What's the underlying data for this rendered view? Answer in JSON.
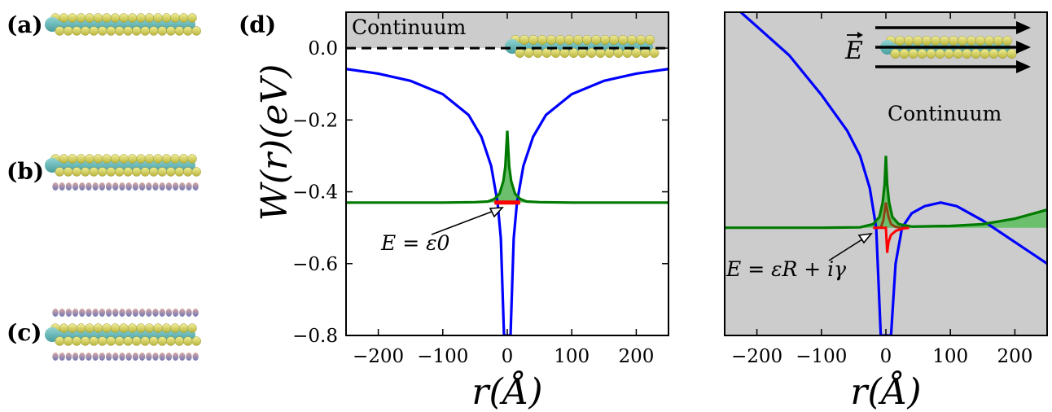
{
  "panel_labels": {
    "a": "(a)",
    "b": "(b)",
    "c": "(c)",
    "d": "(d)"
  },
  "chart_data": [
    {
      "type": "line",
      "panel": "(d)",
      "xlabel": "r(Å)",
      "ylabel": "W(r)(eV)",
      "xlim": [
        -250,
        250
      ],
      "ylim": [
        -0.8,
        0.1
      ],
      "xticks": [
        "−200",
        "−100",
        "0",
        "100",
        "200"
      ],
      "xtick_values": [
        -200,
        -100,
        0,
        100,
        200
      ],
      "yticks": [
        "0.0",
        "−0.2",
        "−0.4",
        "−0.6",
        "−0.8"
      ],
      "ytick_values": [
        0.0,
        -0.2,
        -0.4,
        -0.6,
        -0.8
      ],
      "region_label": "Continuum",
      "continuum_above": 0.0,
      "annotation": "E = ε0",
      "series": [
        {
          "role": "potential W(r)",
          "color": "#0000ff",
          "x": [
            -250,
            -200,
            -150,
            -100,
            -60,
            -40,
            -25,
            -15,
            -10,
            -5,
            5,
            10,
            15,
            25,
            40,
            60,
            100,
            150,
            200,
            250
          ],
          "y": [
            -0.058,
            -0.071,
            -0.091,
            -0.128,
            -0.186,
            -0.247,
            -0.328,
            -0.43,
            -0.53,
            -0.8,
            -0.8,
            -0.53,
            -0.43,
            -0.328,
            -0.247,
            -0.186,
            -0.128,
            -0.091,
            -0.071,
            -0.058
          ]
        },
        {
          "role": "state density (filled)",
          "color": "#007a00",
          "fill": "#6cbf6c",
          "x": [
            -250,
            -100,
            -50,
            -30,
            -20,
            -12,
            -6,
            -3,
            0,
            3,
            6,
            12,
            20,
            30,
            50,
            100,
            250
          ],
          "y": [
            -0.43,
            -0.43,
            -0.429,
            -0.427,
            -0.42,
            -0.405,
            -0.37,
            -0.33,
            -0.23,
            -0.33,
            -0.37,
            -0.405,
            -0.42,
            -0.427,
            -0.429,
            -0.43,
            -0.43
          ]
        },
        {
          "role": "bound level ε0",
          "color": "#ff0000",
          "x": [
            -20,
            20
          ],
          "y": [
            -0.43,
            -0.43
          ]
        }
      ]
    },
    {
      "type": "line",
      "panel": "right",
      "xlabel": "r(Å)",
      "xlim": [
        -250,
        250
      ],
      "ylim": [
        -0.8,
        0.1
      ],
      "xticks": [
        "−200",
        "−100",
        "0",
        "100",
        "200"
      ],
      "xtick_values": [
        -200,
        -100,
        0,
        100,
        200
      ],
      "region_label": "Continuum",
      "field_label": "E",
      "annotation": "E = εR + iγ",
      "series": [
        {
          "role": "tilted potential",
          "color": "#0000ff",
          "x": [
            -225,
            -200,
            -150,
            -100,
            -60,
            -40,
            -25,
            -15,
            -8,
            8,
            15,
            25,
            40,
            60,
            85,
            110,
            150,
            200,
            250
          ],
          "y": [
            0.1,
            0.06,
            -0.02,
            -0.13,
            -0.23,
            -0.3,
            -0.39,
            -0.5,
            -0.8,
            -0.8,
            -0.6,
            -0.5,
            -0.46,
            -0.44,
            -0.43,
            -0.44,
            -0.48,
            -0.54,
            -0.6
          ]
        },
        {
          "role": "resonance density (filled)",
          "color": "#007a00",
          "fill": "#6cbf6c",
          "x": [
            -250,
            -100,
            -40,
            -20,
            -10,
            -5,
            -2,
            0,
            2,
            5,
            10,
            20,
            40,
            100,
            150,
            200,
            250
          ],
          "y": [
            -0.5,
            -0.5,
            -0.499,
            -0.49,
            -0.47,
            -0.43,
            -0.38,
            -0.3,
            -0.38,
            -0.43,
            -0.47,
            -0.49,
            -0.497,
            -0.495,
            -0.49,
            -0.475,
            -0.45
          ]
        },
        {
          "role": "real part",
          "color": "#8b4513",
          "x": [
            -8,
            -4,
            0,
            2,
            4,
            8,
            14,
            22,
            32
          ],
          "y": [
            -0.5,
            -0.48,
            -0.43,
            -0.45,
            -0.47,
            -0.49,
            -0.497,
            -0.5,
            -0.5
          ]
        },
        {
          "role": "imaginary part",
          "color": "#ff0000",
          "x": [
            -20,
            -10,
            0,
            2,
            4,
            8,
            16,
            28,
            36
          ],
          "y": [
            -0.5,
            -0.5,
            -0.5,
            -0.57,
            -0.54,
            -0.52,
            -0.508,
            -0.502,
            -0.5
          ]
        }
      ]
    }
  ]
}
